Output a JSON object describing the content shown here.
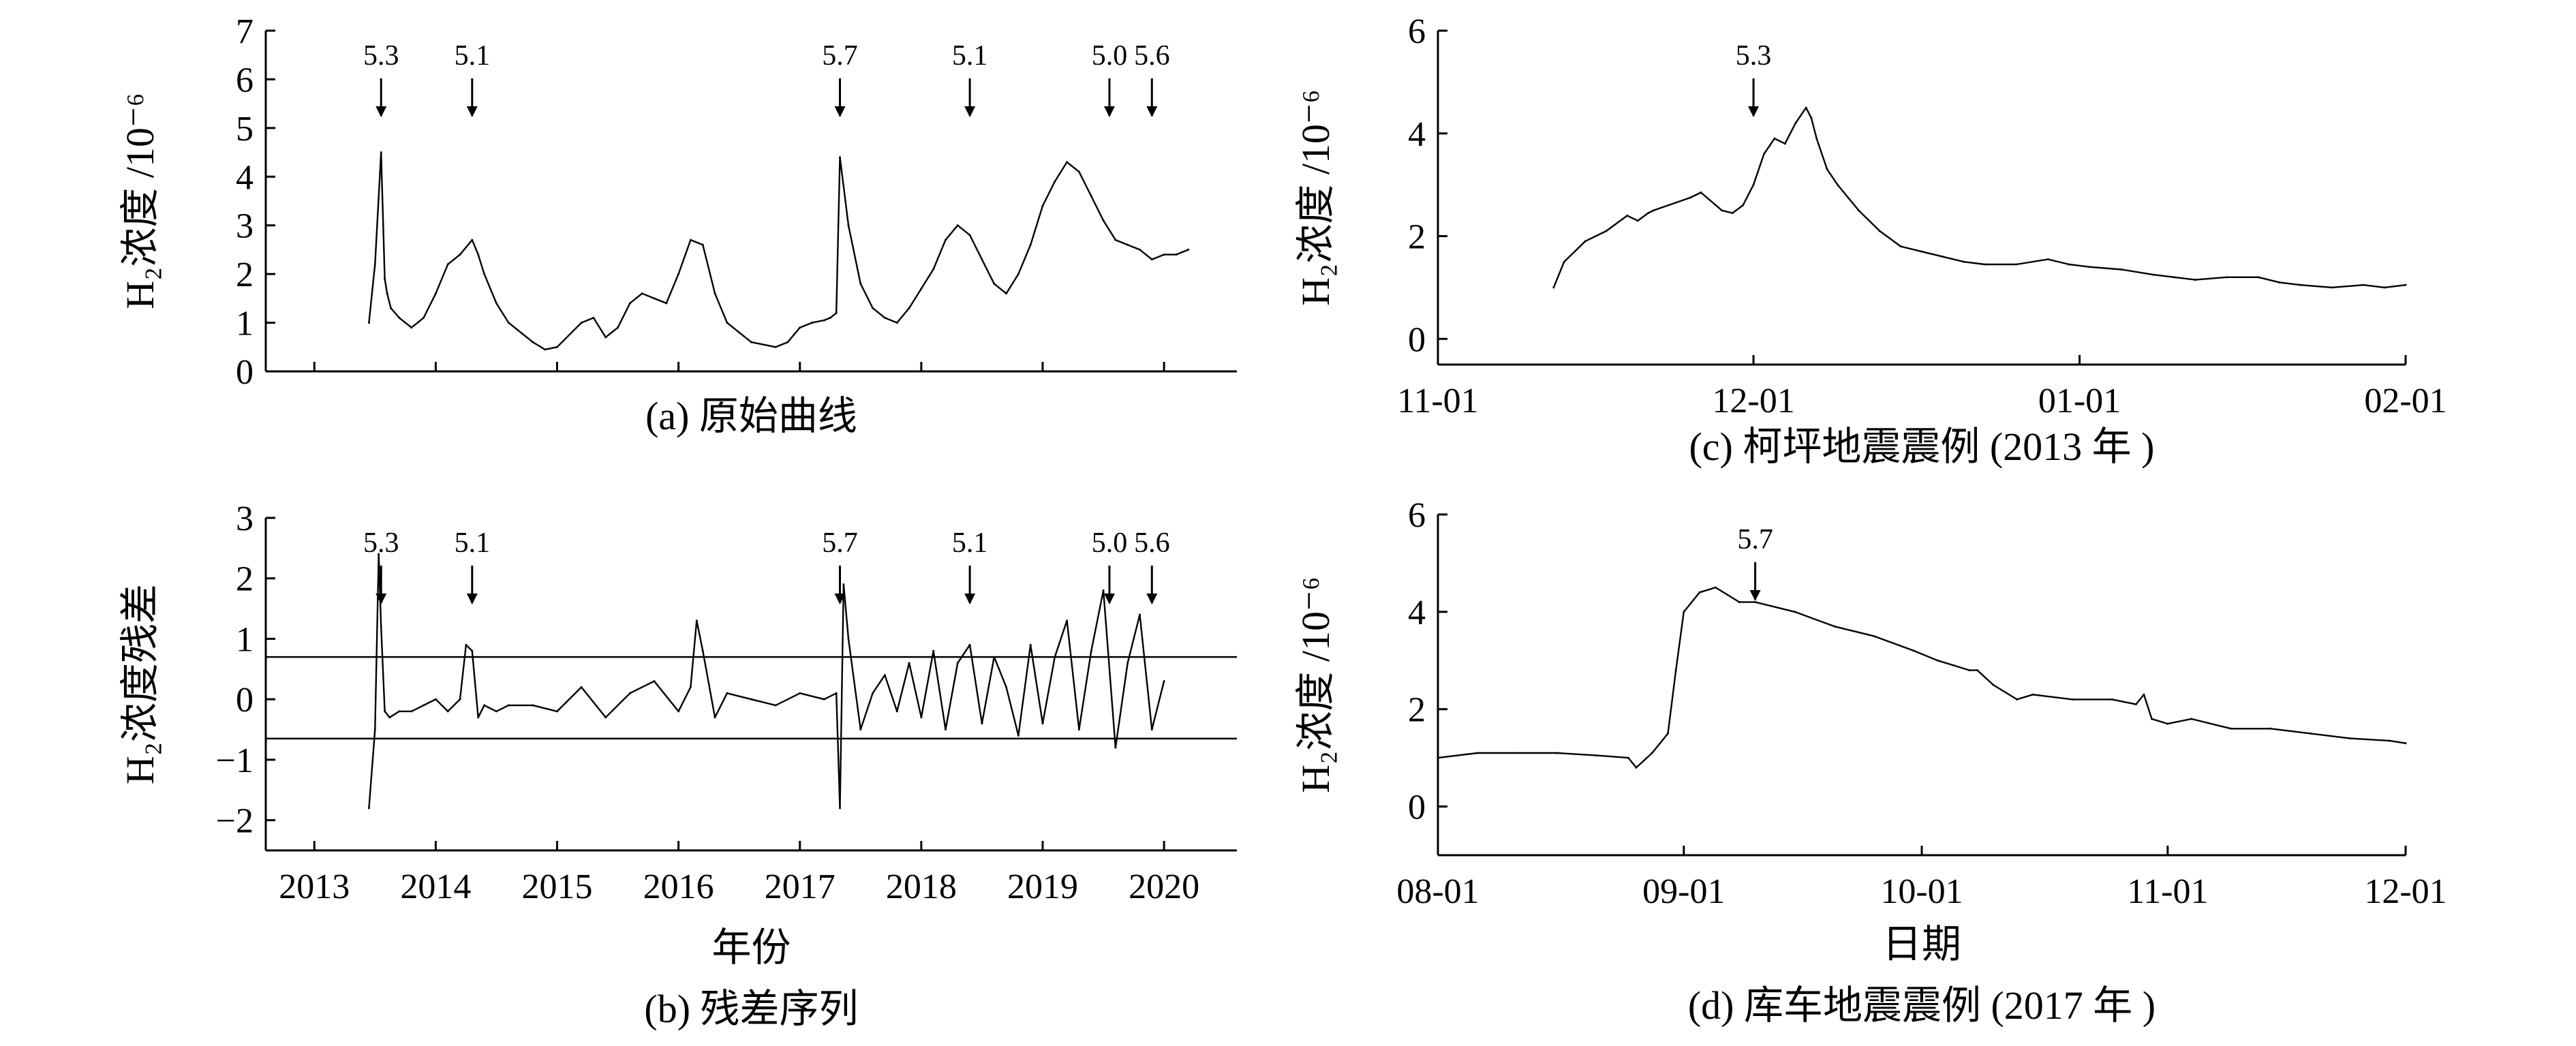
{
  "chart_data": [
    {
      "id": "a",
      "type": "line",
      "caption": "(a) 原始曲线",
      "ylabel": "H₂浓度 /10⁻⁶",
      "xlabel": "",
      "ylim": [
        0,
        7
      ],
      "yticks": [
        0,
        1,
        2,
        3,
        4,
        5,
        6,
        7
      ],
      "xlim": [
        2012.6,
        2020.6
      ],
      "xticks": [
        2013,
        2014,
        2015,
        2016,
        2017,
        2018,
        2019,
        2020
      ],
      "xticklabels": [],
      "series": [
        {
          "x": [
            2013.45,
            2013.5,
            2013.55,
            2013.58,
            2013.6,
            2013.63,
            2013.7,
            2013.8,
            2013.9,
            2014.0,
            2014.1,
            2014.2,
            2014.3,
            2014.35,
            2014.4,
            2014.5,
            2014.6,
            2014.8,
            2014.9,
            2015.0,
            2015.2,
            2015.3,
            2015.4,
            2015.5,
            2015.6,
            2015.7,
            2015.8,
            2015.9,
            2016.0,
            2016.1,
            2016.2,
            2016.3,
            2016.4,
            2016.5,
            2016.6,
            2016.8,
            2016.9,
            2017.0,
            2017.1,
            2017.2,
            2017.25,
            2017.3,
            2017.33,
            2017.4,
            2017.5,
            2017.6,
            2017.7,
            2017.8,
            2017.9,
            2018.0,
            2018.1,
            2018.2,
            2018.3,
            2018.4,
            2018.5,
            2018.6,
            2018.7,
            2018.8,
            2018.9,
            2019.0,
            2019.1,
            2019.2,
            2019.3,
            2019.4,
            2019.5,
            2019.6,
            2019.7,
            2019.8,
            2019.9,
            2020.0,
            2020.1,
            2020.2
          ],
          "y": [
            1.0,
            2.2,
            4.5,
            1.9,
            1.6,
            1.3,
            1.1,
            0.9,
            1.1,
            1.6,
            2.2,
            2.4,
            2.7,
            2.4,
            2.0,
            1.4,
            1.0,
            0.6,
            0.45,
            0.5,
            1.0,
            1.1,
            0.7,
            0.9,
            1.4,
            1.6,
            1.5,
            1.4,
            2.0,
            2.7,
            2.6,
            1.6,
            1.0,
            0.8,
            0.6,
            0.5,
            0.6,
            0.9,
            1.0,
            1.05,
            1.1,
            1.2,
            4.4,
            3.0,
            1.8,
            1.3,
            1.1,
            1.0,
            1.3,
            1.7,
            2.1,
            2.7,
            3.0,
            2.8,
            2.3,
            1.8,
            1.6,
            2.0,
            2.6,
            3.4,
            3.9,
            4.3,
            4.1,
            3.6,
            3.1,
            2.7,
            2.6,
            2.5,
            2.3,
            2.4,
            2.4,
            2.5
          ]
        }
      ],
      "annotations": [
        {
          "label": "5.3",
          "x": 2013.55
        },
        {
          "label": "5.1",
          "x": 2014.3
        },
        {
          "label": "5.7",
          "x": 2017.33
        },
        {
          "label": "5.1",
          "x": 2018.4
        },
        {
          "label": "5.0",
          "x": 2019.55
        },
        {
          "label": "5.6",
          "x": 2019.9
        }
      ]
    },
    {
      "id": "b",
      "type": "line",
      "caption": "(b) 残差序列",
      "ylabel": "H₂浓度残差",
      "xlabel": "年份",
      "ylim": [
        -2.5,
        3
      ],
      "yticks": [
        -2,
        -1,
        0,
        1,
        2,
        3
      ],
      "xlim": [
        2012.6,
        2020.6
      ],
      "xticks": [
        2013,
        2014,
        2015,
        2016,
        2017,
        2018,
        2019,
        2020
      ],
      "xticklabels": [
        "2013",
        "2014",
        "2015",
        "2016",
        "2017",
        "2018",
        "2019",
        "2020"
      ],
      "thresholds": [
        0.7,
        -0.65
      ],
      "series": [
        {
          "x": [
            2013.45,
            2013.5,
            2013.53,
            2013.55,
            2013.58,
            2013.62,
            2013.7,
            2013.8,
            2013.9,
            2014.0,
            2014.1,
            2014.2,
            2014.25,
            2014.3,
            2014.35,
            2014.4,
            2014.5,
            2014.6,
            2014.8,
            2015.0,
            2015.2,
            2015.4,
            2015.6,
            2015.8,
            2016.0,
            2016.1,
            2016.15,
            2016.2,
            2016.3,
            2016.4,
            2016.6,
            2016.8,
            2017.0,
            2017.2,
            2017.3,
            2017.33,
            2017.36,
            2017.4,
            2017.5,
            2017.6,
            2017.7,
            2017.8,
            2017.9,
            2018.0,
            2018.1,
            2018.2,
            2018.3,
            2018.4,
            2018.5,
            2018.6,
            2018.7,
            2018.8,
            2018.9,
            2019.0,
            2019.1,
            2019.2,
            2019.3,
            2019.4,
            2019.5,
            2019.6,
            2019.7,
            2019.8,
            2019.9,
            2020.0
          ],
          "y": [
            -1.8,
            -0.5,
            2.4,
            1.2,
            -0.2,
            -0.3,
            -0.2,
            -0.2,
            -0.1,
            0.0,
            -0.2,
            0.0,
            0.9,
            0.8,
            -0.3,
            -0.1,
            -0.2,
            -0.1,
            -0.1,
            -0.2,
            0.2,
            -0.3,
            0.1,
            0.3,
            -0.2,
            0.2,
            1.3,
            0.8,
            -0.3,
            0.1,
            0.0,
            -0.1,
            0.1,
            0.0,
            0.1,
            -1.8,
            1.9,
            1.0,
            -0.5,
            0.1,
            0.4,
            -0.2,
            0.6,
            -0.3,
            0.8,
            -0.5,
            0.6,
            0.9,
            -0.4,
            0.7,
            0.2,
            -0.6,
            0.9,
            -0.4,
            0.7,
            1.3,
            -0.5,
            0.8,
            1.8,
            -0.8,
            0.6,
            1.4,
            -0.5,
            0.3
          ]
        }
      ],
      "annotations": [
        {
          "label": "5.3",
          "x": 2013.55
        },
        {
          "label": "5.1",
          "x": 2014.3
        },
        {
          "label": "5.7",
          "x": 2017.33
        },
        {
          "label": "5.1",
          "x": 2018.4
        },
        {
          "label": "5.0",
          "x": 2019.55
        },
        {
          "label": "5.6",
          "x": 2019.9
        }
      ]
    },
    {
      "id": "c",
      "type": "line",
      "caption": "(c) 柯坪地震震例 (2013 年 )",
      "ylabel": "H₂浓度 /10⁻⁶",
      "xlabel": "",
      "ylim": [
        -0.5,
        6
      ],
      "yticks": [
        0,
        2,
        4,
        6
      ],
      "xlim": [
        0,
        92
      ],
      "xticks": [
        0,
        30,
        61,
        92
      ],
      "xticklabels": [
        "11-01",
        "12-01",
        "01-01",
        "02-01"
      ],
      "series": [
        {
          "x": [
            11,
            12,
            14,
            16,
            18,
            19,
            20,
            20.5,
            24,
            25,
            27,
            28,
            29,
            30,
            31,
            32,
            33,
            34,
            35,
            35.5,
            36,
            37,
            38,
            40,
            42,
            44,
            46,
            48,
            50,
            52,
            55,
            58,
            60,
            62,
            65,
            68,
            70,
            72,
            75,
            78,
            80,
            82,
            85,
            88,
            90,
            92
          ],
          "y": [
            1.0,
            1.5,
            1.9,
            2.1,
            2.4,
            2.3,
            2.45,
            2.5,
            2.75,
            2.85,
            2.5,
            2.45,
            2.6,
            3.0,
            3.6,
            3.9,
            3.8,
            4.2,
            4.5,
            4.3,
            3.9,
            3.3,
            3.0,
            2.5,
            2.1,
            1.8,
            1.7,
            1.6,
            1.5,
            1.45,
            1.45,
            1.55,
            1.45,
            1.4,
            1.35,
            1.25,
            1.2,
            1.15,
            1.2,
            1.2,
            1.1,
            1.05,
            1.0,
            1.05,
            1.0,
            1.05
          ]
        }
      ],
      "annotations": [
        {
          "label": "5.3",
          "x": 30
        }
      ]
    },
    {
      "id": "d",
      "type": "line",
      "caption": "(d) 库车地震震例 (2017 年 )",
      "ylabel": "H₂浓度 /10⁻⁶",
      "xlabel": "日期",
      "ylim": [
        -1,
        6
      ],
      "yticks": [
        0,
        2,
        4,
        6
      ],
      "xlim": [
        0,
        122
      ],
      "xticks": [
        0,
        31,
        61,
        92,
        122
      ],
      "xticklabels": [
        "08-01",
        "09-01",
        "10-01",
        "11-01",
        "12-01"
      ],
      "series": [
        {
          "x": [
            0,
            5,
            10,
            15,
            20,
            24,
            25,
            27,
            29,
            30,
            31,
            33,
            35,
            38,
            40,
            45,
            50,
            55,
            60,
            63,
            65,
            67,
            68,
            70,
            73,
            75,
            80,
            85,
            88,
            89,
            90,
            92,
            95,
            100,
            105,
            110,
            115,
            120,
            122
          ],
          "y": [
            1.0,
            1.1,
            1.1,
            1.1,
            1.05,
            1.0,
            0.8,
            1.1,
            1.5,
            2.8,
            4.0,
            4.4,
            4.5,
            4.2,
            4.2,
            4.0,
            3.7,
            3.5,
            3.2,
            3.0,
            2.9,
            2.8,
            2.8,
            2.5,
            2.2,
            2.3,
            2.2,
            2.2,
            2.1,
            2.3,
            1.8,
            1.7,
            1.8,
            1.6,
            1.6,
            1.5,
            1.4,
            1.35,
            1.3
          ]
        }
      ],
      "annotations": [
        {
          "label": "5.7",
          "x": 40
        }
      ]
    }
  ]
}
